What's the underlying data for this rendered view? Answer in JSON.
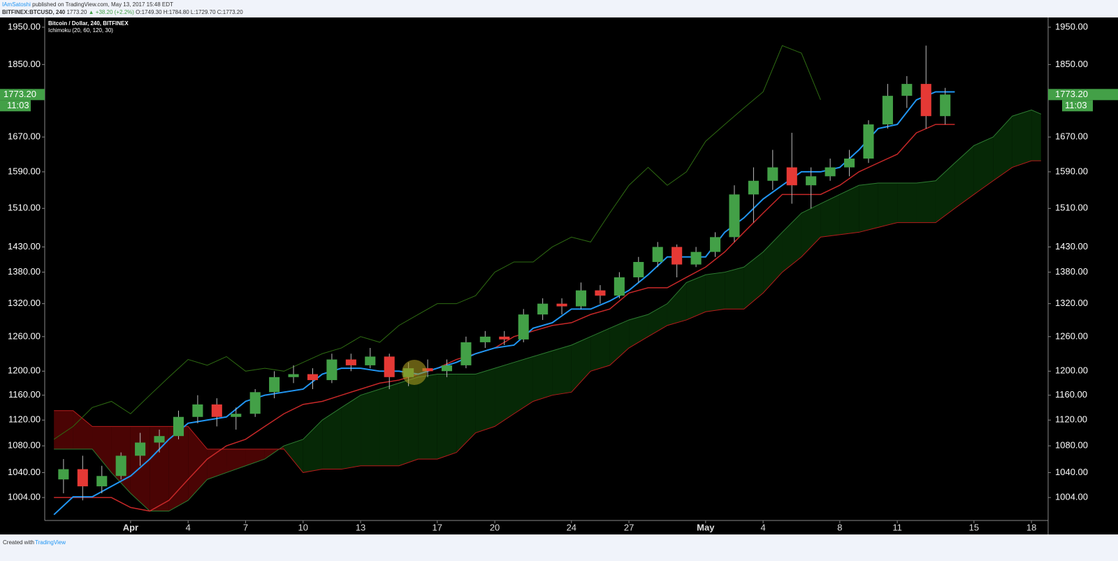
{
  "header": {
    "publisher": "IAmSatoshi",
    "published": "published on TradingView.com, May 13, 2017 15:48 EDT",
    "symbol": "BITFINEX:BTCUSD, 240",
    "quote": [
      "1773.20",
      "▲ +38.20 (+2.2%)",
      "O:1749.30",
      "H:1784.80",
      "L:1729.70",
      "C:1773.20"
    ]
  },
  "footer": {
    "created": "Created with",
    "brand": "TradingView"
  },
  "chart_data": {
    "type": "candlestick",
    "title": "Bitcoin / Dollar, 240, BITFINEX",
    "indicator": "Ichimoku (20, 60, 120, 30)",
    "log_scale": true,
    "ylim": [
      972,
      1977
    ],
    "xlim": [
      -4.48,
      47.87
    ],
    "yticks": [
      {
        "value": 1004,
        "label": "1004.00"
      },
      {
        "value": 1040,
        "label": "1040.00"
      },
      {
        "value": 1080,
        "label": "1080.00"
      },
      {
        "value": 1120,
        "label": "1120.00"
      },
      {
        "value": 1160,
        "label": "1160.00"
      },
      {
        "value": 1200,
        "label": "1200.00"
      },
      {
        "value": 1260,
        "label": "1260.00"
      },
      {
        "value": 1320,
        "label": "1320.00"
      },
      {
        "value": 1380,
        "label": "1380.00"
      },
      {
        "value": 1430,
        "label": "1430.00"
      },
      {
        "value": 1510,
        "label": "1510.00"
      },
      {
        "value": 1590,
        "label": "1590.00"
      },
      {
        "value": 1670,
        "label": "1670.00"
      },
      {
        "value": 1850,
        "label": "1850.00"
      },
      {
        "value": 1950,
        "label": "1950.00"
      }
    ],
    "xticks": [
      {
        "value": 0,
        "label": "Apr"
      },
      {
        "value": 3,
        "label": "4"
      },
      {
        "value": 6,
        "label": "7"
      },
      {
        "value": 9,
        "label": "10"
      },
      {
        "value": 12,
        "label": "13"
      },
      {
        "value": 16,
        "label": "17"
      },
      {
        "value": 19,
        "label": "20"
      },
      {
        "value": 23,
        "label": "24"
      },
      {
        "value": 26,
        "label": "27"
      },
      {
        "value": 30,
        "label": "May"
      },
      {
        "value": 33,
        "label": "4"
      },
      {
        "value": 37,
        "label": "8"
      },
      {
        "value": 40,
        "label": "11"
      },
      {
        "value": 44,
        "label": "15"
      },
      {
        "value": 47,
        "label": "18"
      }
    ],
    "last_price": {
      "value": 1773.2,
      "label": "1773.20"
    },
    "countdown": "11:03",
    "up_color": "#43a047",
    "down_color": "#e53935",
    "x": [
      -3.5,
      -2.5,
      -1.5,
      -0.5,
      0.5,
      1.5,
      2.5,
      3.5,
      4.5,
      5.5,
      6.5,
      7.5,
      8.5,
      9.5,
      10.5,
      11.5,
      12.5,
      13.5,
      14.5,
      15.5,
      16.5,
      17.5,
      18.5,
      19.5,
      20.5,
      21.5,
      22.5,
      23.5,
      24.5,
      25.5,
      26.5,
      27.5,
      28.5,
      29.5,
      30.5,
      31.5,
      32.5,
      33.5,
      34.5,
      35.5,
      36.5,
      37.5,
      38.5,
      39.5,
      40.5,
      41.5,
      42.5
    ],
    "open": [
      1030,
      1045,
      1020,
      1035,
      1065,
      1085,
      1095,
      1125,
      1145,
      1125,
      1130,
      1165,
      1190,
      1195,
      1185,
      1220,
      1210,
      1225,
      1190,
      1205,
      1200,
      1210,
      1250,
      1260,
      1255,
      1300,
      1320,
      1315,
      1345,
      1335,
      1370,
      1400,
      1430,
      1395,
      1420,
      1450,
      1540,
      1570,
      1600,
      1560,
      1580,
      1600,
      1620,
      1700,
      1770,
      1800,
      1720
    ],
    "high": [
      1060,
      1065,
      1050,
      1070,
      1100,
      1105,
      1135,
      1160,
      1155,
      1140,
      1170,
      1200,
      1210,
      1205,
      1230,
      1230,
      1240,
      1230,
      1215,
      1220,
      1220,
      1260,
      1270,
      1270,
      1310,
      1330,
      1330,
      1360,
      1355,
      1380,
      1410,
      1440,
      1435,
      1430,
      1460,
      1560,
      1600,
      1640,
      1680,
      1600,
      1620,
      1640,
      1710,
      1800,
      1820,
      1900,
      1790
    ],
    "low": [
      1010,
      1000,
      1010,
      1030,
      1050,
      1070,
      1090,
      1115,
      1110,
      1105,
      1125,
      1155,
      1180,
      1170,
      1180,
      1200,
      1205,
      1170,
      1175,
      1190,
      1190,
      1205,
      1240,
      1245,
      1250,
      1290,
      1300,
      1310,
      1320,
      1330,
      1360,
      1390,
      1370,
      1390,
      1410,
      1440,
      1480,
      1550,
      1520,
      1510,
      1570,
      1580,
      1610,
      1690,
      1740,
      1690,
      1700
    ],
    "close": [
      1045,
      1020,
      1035,
      1065,
      1085,
      1095,
      1125,
      1145,
      1125,
      1130,
      1165,
      1190,
      1195,
      1185,
      1220,
      1210,
      1225,
      1190,
      1205,
      1200,
      1210,
      1250,
      1260,
      1255,
      1300,
      1320,
      1315,
      1345,
      1335,
      1370,
      1400,
      1430,
      1395,
      1420,
      1450,
      1540,
      1570,
      1600,
      1560,
      1580,
      1600,
      1620,
      1700,
      1770,
      1800,
      1720,
      1773.2
    ],
    "line_x": [
      -4,
      -3,
      -2,
      -1,
      0,
      1,
      2,
      3,
      4,
      5,
      6,
      7,
      8,
      9,
      10,
      11,
      12,
      13,
      14,
      15,
      16,
      17,
      18,
      19,
      20,
      21,
      22,
      23,
      24,
      25,
      26,
      27,
      28,
      29,
      30,
      31,
      32,
      33,
      34,
      35,
      36,
      37,
      38,
      39,
      40,
      41,
      42,
      43
    ],
    "conversion_line": {
      "color": "#2196f3",
      "values": [
        980,
        1005,
        1005,
        1020,
        1035,
        1060,
        1090,
        1115,
        1120,
        1125,
        1150,
        1160,
        1165,
        1170,
        1195,
        1205,
        1205,
        1200,
        1200,
        1195,
        1205,
        1215,
        1230,
        1240,
        1245,
        1275,
        1285,
        1310,
        1310,
        1325,
        1345,
        1375,
        1410,
        1410,
        1410,
        1460,
        1490,
        1530,
        1560,
        1590,
        1590,
        1600,
        1640,
        1690,
        1700,
        1760,
        1780,
        1780
      ]
    },
    "base_line": {
      "color": "#c62828",
      "values": [
        1004,
        1004,
        1004,
        1004,
        990,
        985,
        1000,
        1030,
        1060,
        1080,
        1090,
        1110,
        1130,
        1145,
        1150,
        1160,
        1170,
        1180,
        1185,
        1195,
        1205,
        1220,
        1230,
        1240,
        1260,
        1270,
        1280,
        1285,
        1300,
        1310,
        1340,
        1350,
        1350,
        1370,
        1390,
        1420,
        1460,
        1500,
        1540,
        1540,
        1540,
        1560,
        1590,
        1610,
        1630,
        1680,
        1700,
        1700
      ]
    },
    "cloud_x": [
      -4,
      -3,
      -2,
      -1,
      0,
      1,
      2,
      3,
      4,
      5,
      6,
      7,
      8,
      9,
      10,
      11,
      12,
      13,
      14,
      15,
      16,
      17,
      18,
      19,
      20,
      21,
      22,
      23,
      24,
      25,
      26,
      27,
      28,
      29,
      30,
      31,
      32,
      33,
      34,
      35,
      36,
      37,
      38,
      39,
      40,
      41,
      42,
      43,
      44,
      45,
      46,
      47,
      47.5
    ],
    "span_a": {
      "color": "#2e7d32",
      "fill": "#062806",
      "values": [
        1075,
        1075,
        1075,
        1040,
        1010,
        985,
        985,
        1000,
        1030,
        1040,
        1050,
        1060,
        1080,
        1090,
        1120,
        1140,
        1160,
        1170,
        1180,
        1190,
        1195,
        1195,
        1195,
        1205,
        1215,
        1225,
        1235,
        1245,
        1260,
        1275,
        1290,
        1300,
        1320,
        1360,
        1375,
        1380,
        1390,
        1420,
        1460,
        1500,
        1520,
        1540,
        1560,
        1565,
        1565,
        1565,
        1570,
        1610,
        1650,
        1670,
        1720,
        1735,
        1725
      ]
    },
    "span_b": {
      "color": "#b71c1c",
      "fill": "#4a0404",
      "values": [
        1135,
        1135,
        1110,
        1110,
        1110,
        1110,
        1110,
        1110,
        1075,
        1075,
        1075,
        1075,
        1075,
        1040,
        1045,
        1045,
        1050,
        1050,
        1050,
        1060,
        1060,
        1070,
        1100,
        1110,
        1130,
        1150,
        1160,
        1165,
        1200,
        1210,
        1240,
        1260,
        1280,
        1290,
        1305,
        1310,
        1310,
        1340,
        1380,
        1410,
        1450,
        1455,
        1460,
        1470,
        1480,
        1480,
        1480,
        1510,
        1540,
        1570,
        1600,
        1615,
        1615
      ]
    },
    "lagging_x": [
      -4,
      -3,
      -2,
      -1,
      0,
      1,
      2,
      3,
      4,
      5,
      6,
      7,
      8,
      9,
      10,
      11,
      12,
      13,
      14,
      15,
      16,
      17,
      18,
      19,
      20,
      21,
      22,
      23,
      24,
      25,
      26,
      27,
      28,
      29,
      30,
      31,
      32,
      33,
      34,
      35,
      36
    ],
    "lagging_line": {
      "color": "#2e6b12",
      "values": [
        1090,
        1110,
        1140,
        1150,
        1130,
        1160,
        1190,
        1220,
        1210,
        1225,
        1200,
        1205,
        1200,
        1215,
        1230,
        1240,
        1260,
        1250,
        1280,
        1300,
        1320,
        1320,
        1335,
        1380,
        1400,
        1400,
        1430,
        1450,
        1440,
        1500,
        1560,
        1600,
        1560,
        1590,
        1660,
        1700,
        1740,
        1780,
        1900,
        1880,
        1760
      ]
    }
  }
}
